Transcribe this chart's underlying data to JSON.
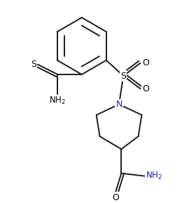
{
  "background": "#ffffff",
  "lw": 1.4,
  "bc": "#1a1a1a",
  "tc": "#000000",
  "Nc": "#1a1acc",
  "figsize": [
    2.7,
    2.89
  ],
  "dpi": 100,
  "xlim": [
    0.0,
    6.5
  ],
  "ylim": [
    0.0,
    7.0
  ]
}
